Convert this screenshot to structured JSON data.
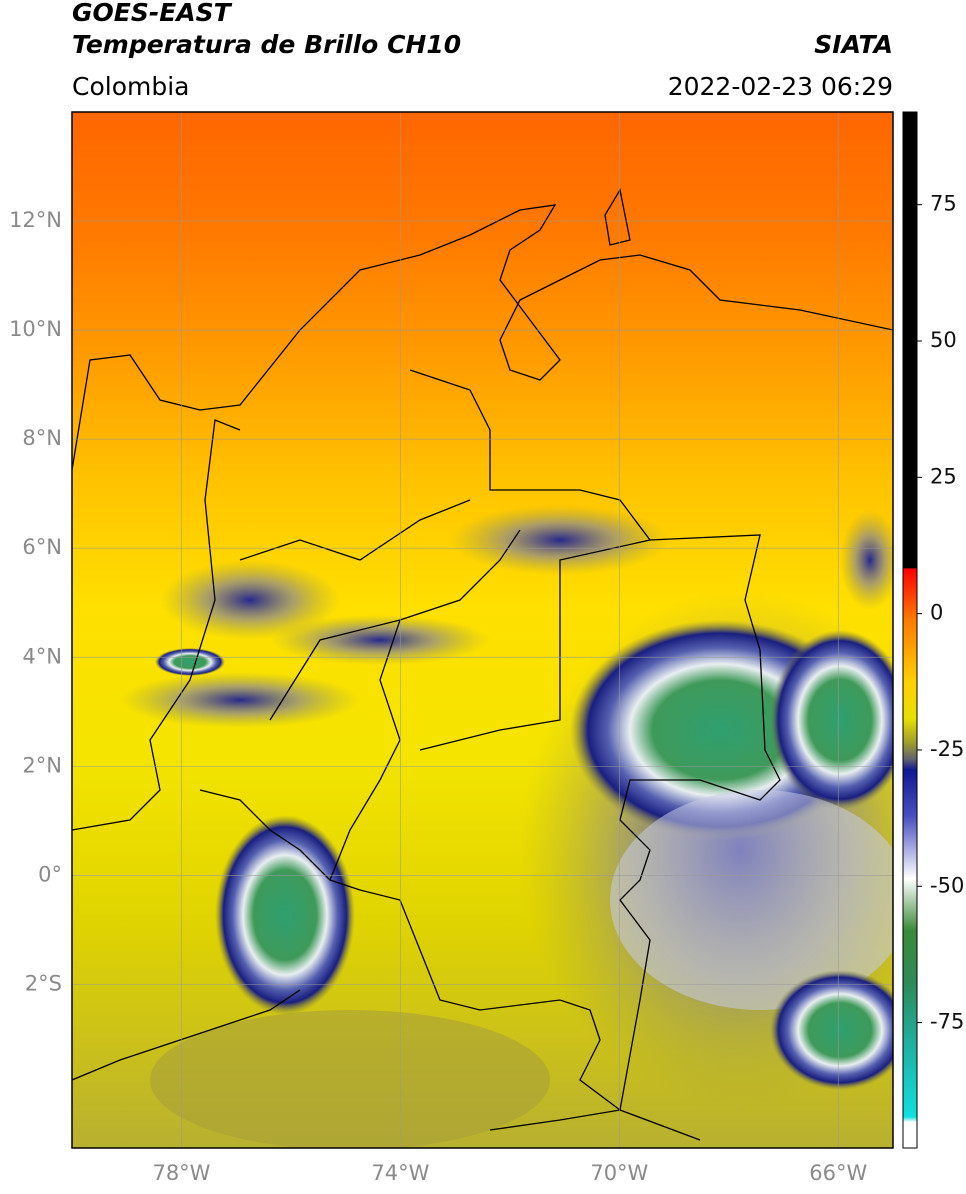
{
  "header": {
    "title_line1": "GOES-EAST",
    "title_line2": "Temperatura de Brillo CH10",
    "source": "SIATA",
    "region": "Colombia",
    "timestamp": "2022-02-23 06:29"
  },
  "map": {
    "xlim": [
      -80,
      -65
    ],
    "ylim": [
      -5,
      14
    ],
    "xticks": [
      {
        "value": -78,
        "label": "78°W"
      },
      {
        "value": -74,
        "label": "74°W"
      },
      {
        "value": -70,
        "label": "70°W"
      },
      {
        "value": -66,
        "label": "66°W"
      }
    ],
    "yticks": [
      {
        "value": 12,
        "label": "12°N"
      },
      {
        "value": 10,
        "label": "10°N"
      },
      {
        "value": 8,
        "label": "8°N"
      },
      {
        "value": 6,
        "label": "6°N"
      },
      {
        "value": 4,
        "label": "4°N"
      },
      {
        "value": 2,
        "label": "2°N"
      },
      {
        "value": 0,
        "label": "0°"
      },
      {
        "value": -2,
        "label": "2°S"
      }
    ],
    "grid": true
  },
  "colorbar": {
    "lim": [
      -98,
      92
    ],
    "ticks": [
      75,
      50,
      25,
      0,
      -25,
      -50,
      -75
    ]
  }
}
